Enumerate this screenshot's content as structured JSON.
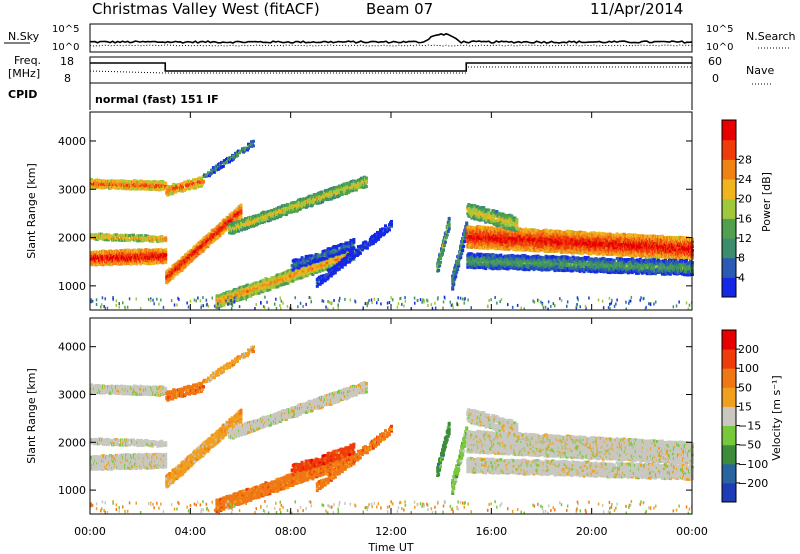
{
  "header": {
    "station": "Christmas Valley West (fitACF)",
    "beam": "Beam 07",
    "date": "11/Apr/2014"
  },
  "summary": {
    "nsky_label": "N.Sky",
    "nsky_top": "10^5",
    "nsky_bottom": "10^0",
    "nsearch_label": "N.Search",
    "nsearch_top": "10^5",
    "nsearch_bottom": "10^0",
    "freq_label_1": "Freq.",
    "freq_label_2": "[MHz]",
    "freq_ticks": [
      "18",
      "8"
    ],
    "nave_label": "Nave",
    "nave_ticks": [
      "60",
      "0"
    ],
    "cpid_label": "CPID",
    "cpid_text": "normal (fast) 151 IF"
  },
  "chart_data": [
    {
      "type": "heatmap",
      "name": "power",
      "ylabel": "Slant Range [km]",
      "yticks": [
        1000,
        2000,
        3000,
        4000
      ],
      "ylim": [
        500,
        4600
      ],
      "xlabel": "Time UT",
      "xticks": [
        "00:00",
        "04:00",
        "08:00",
        "12:00",
        "16:00",
        "20:00",
        "00:00"
      ],
      "xlim_hours": [
        0,
        24
      ],
      "colorbar": {
        "label": "Power [dB]",
        "ticks": [
          "4",
          "8",
          "12",
          "16",
          "20",
          "24",
          "28"
        ],
        "colors": [
          "#1428e6",
          "#2a5ab4",
          "#3c8c6e",
          "#50a050",
          "#a0c83c",
          "#f0b41e",
          "#f08214",
          "#f03c0a",
          "#e60000"
        ]
      }
    },
    {
      "type": "heatmap",
      "name": "velocity",
      "ylabel": "Slant Range [km]",
      "yticks": [
        1000,
        2000,
        3000,
        4000
      ],
      "ylim": [
        500,
        4600
      ],
      "xlabel": "Time UT",
      "xticks": [
        "00:00",
        "04:00",
        "08:00",
        "12:00",
        "16:00",
        "20:00",
        "00:00"
      ],
      "xlim_hours": [
        0,
        24
      ],
      "colorbar": {
        "label": "Velocity [m s⁻¹]",
        "ticks": [
          "200",
          "100",
          "50",
          "15",
          "−15",
          "−50",
          "−100",
          "−200"
        ],
        "colors": [
          "#1e3cb4",
          "#2864a0",
          "#3c8c3c",
          "#78c83c",
          "#c8c8c0",
          "#f0a01e",
          "#f07814",
          "#f03c0a",
          "#e60000"
        ]
      }
    }
  ]
}
